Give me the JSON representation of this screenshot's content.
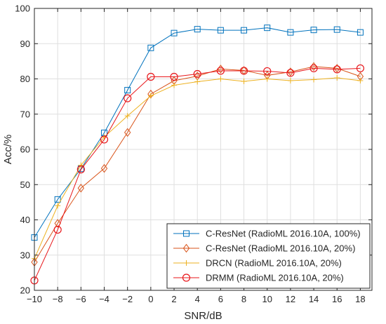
{
  "chart_data": {
    "type": "line",
    "xlabel": "SNR/dB",
    "ylabel": "Acc/%",
    "xlim": [
      -10,
      19
    ],
    "ylim": [
      20,
      100
    ],
    "xticks": [
      "−10",
      "−8",
      "−6",
      "−4",
      "−2",
      "0",
      "2",
      "4",
      "6",
      "8",
      "10",
      "12",
      "14",
      "16",
      "18"
    ],
    "yticks": [
      "20",
      "30",
      "40",
      "50",
      "60",
      "70",
      "80",
      "90",
      "100"
    ],
    "grid": true,
    "legend_position": "bottom-right",
    "x": [
      -10,
      -8,
      -6,
      -4,
      -2,
      0,
      2,
      4,
      6,
      8,
      10,
      12,
      14,
      16,
      18
    ],
    "series": [
      {
        "name": "C-ResNet (RadioML 2016.10A, 100%)",
        "color": "#0072BD",
        "marker": "square",
        "values": [
          35.0,
          45.8,
          54.5,
          64.7,
          76.8,
          88.8,
          93.0,
          94.1,
          93.8,
          93.8,
          94.5,
          93.2,
          93.9,
          94.0,
          93.2
        ]
      },
      {
        "name": "C-ResNet (RadioML 2016.10A, 20%)",
        "color": "#D95319",
        "marker": "diamond",
        "values": [
          28.0,
          39.0,
          49.0,
          54.6,
          64.8,
          75.7,
          79.5,
          80.8,
          82.8,
          82.4,
          81.0,
          82.0,
          83.5,
          83.0,
          80.7
        ]
      },
      {
        "name": "DRCN (RadioML 2016.10A, 20%)",
        "color": "#EDB120",
        "marker": "plus",
        "values": [
          29.0,
          44.0,
          55.5,
          63.5,
          69.5,
          75.2,
          78.2,
          79.2,
          80.0,
          79.3,
          80.0,
          79.5,
          79.8,
          80.3,
          79.5
        ]
      },
      {
        "name": "DRMM (RadioML 2016.10A, 20%)",
        "color": "#E8161A",
        "marker": "circle",
        "values": [
          22.8,
          37.2,
          54.3,
          62.8,
          74.5,
          80.6,
          80.6,
          81.4,
          82.3,
          82.3,
          82.2,
          81.7,
          83.0,
          82.7,
          83.0
        ]
      }
    ]
  }
}
